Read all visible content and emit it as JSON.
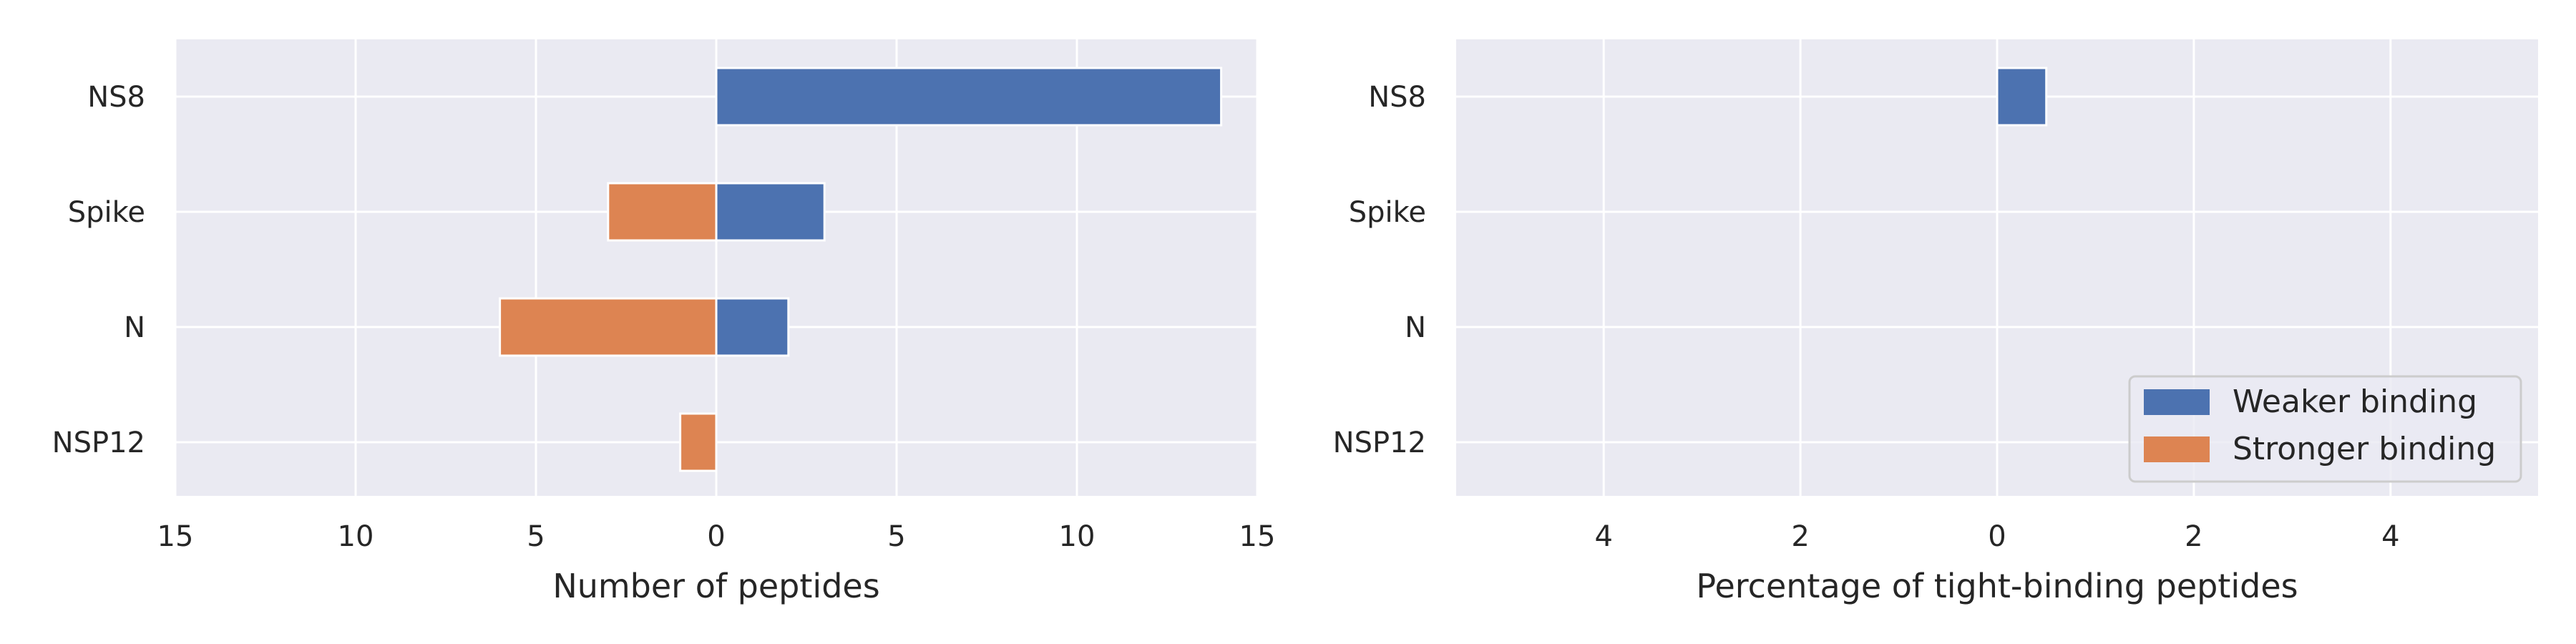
{
  "chart_data": [
    {
      "type": "bar",
      "orientation": "horizontal",
      "categories": [
        "NS8",
        "Spike",
        "N",
        "NSP12"
      ],
      "series": [
        {
          "name": "Weaker binding",
          "values": [
            14,
            3,
            2,
            0
          ]
        },
        {
          "name": "Stronger binding",
          "values": [
            0,
            -3,
            -6,
            -1
          ]
        }
      ],
      "xlabel": "Number of peptides",
      "xlim": [
        -15,
        15
      ],
      "xticks": [
        -15,
        -10,
        -5,
        0,
        5,
        10,
        15
      ],
      "xtick_labels": [
        "15",
        "10",
        "5",
        "0",
        "5",
        "10",
        "15"
      ],
      "grid": true,
      "legend": false
    },
    {
      "type": "bar",
      "orientation": "horizontal",
      "categories": [
        "NS8",
        "Spike",
        "N",
        "NSP12"
      ],
      "series": [
        {
          "name": "Weaker binding",
          "values": [
            0.5,
            0,
            0,
            0
          ]
        },
        {
          "name": "Stronger binding",
          "values": [
            0,
            0,
            0,
            0
          ]
        }
      ],
      "xlabel": "Percentage of tight-binding peptides",
      "xlim": [
        -5.5,
        5.5
      ],
      "xticks": [
        -4,
        -2,
        0,
        2,
        4
      ],
      "xtick_labels": [
        "4",
        "2",
        "0",
        "2",
        "4"
      ],
      "grid": true,
      "legend": true,
      "legend_position": "lower-right"
    }
  ],
  "colors": {
    "weaker": "#4c72b0",
    "stronger": "#dd8452",
    "background": "#eaeaf2",
    "grid": "#ffffff",
    "text": "#262626"
  }
}
